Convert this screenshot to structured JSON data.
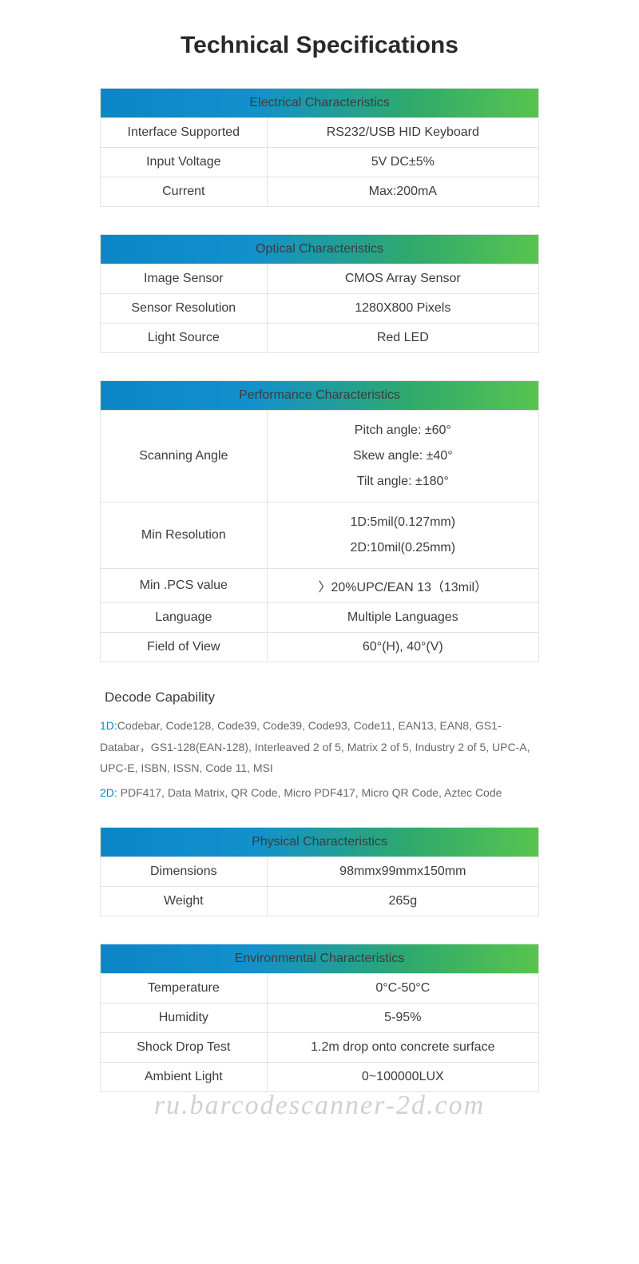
{
  "page": {
    "title": "Technical Specifications"
  },
  "header_gradient": [
    "#0b86c6",
    "#1291cd",
    "#2ea96e",
    "#58c44e"
  ],
  "border_color": "#e2e3e4",
  "text_color": "#3b3c3d",
  "muted_text_color": "#66696c",
  "accent_color": "#0b86c6",
  "tables": {
    "electrical": {
      "title": "Electrical Characteristics",
      "rows": [
        {
          "label": "Interface Supported",
          "value": "RS232/USB HID Keyboard"
        },
        {
          "label": "Input Voltage",
          "value": "5V DC±5%"
        },
        {
          "label": "Current",
          "value": "Max:200mA"
        }
      ]
    },
    "optical": {
      "title": "Optical Characteristics",
      "rows": [
        {
          "label": "Image Sensor",
          "value": "CMOS Array Sensor"
        },
        {
          "label": "Sensor Resolution",
          "value": "1280X800 Pixels"
        },
        {
          "label": "Light Source",
          "value": "Red LED"
        }
      ]
    },
    "performance": {
      "title": "Performance Characteristics",
      "rows": [
        {
          "label": "Scanning Angle",
          "value": "Pitch angle: ±60°\nSkew angle: ±40°\nTilt angle: ±180°",
          "multiline": true
        },
        {
          "label": "Min Resolution",
          "value": "1D:5mil(0.127mm)\n2D:10mil(0.25mm)",
          "multiline": true
        },
        {
          "label": "Min .PCS value",
          "value": "〉20%UPC/EAN 13（13mil）"
        },
        {
          "label": "Language",
          "value": "Multiple Languages"
        },
        {
          "label": "Field of View",
          "value": "60°(H), 40°(V)"
        }
      ]
    },
    "physical": {
      "title": "Physical Characteristics",
      "rows": [
        {
          "label": "Dimensions",
          "value": "98mmx99mmx150mm"
        },
        {
          "label": "Weight",
          "value": "265g"
        }
      ]
    },
    "environmental": {
      "title": "Environmental Characteristics",
      "rows": [
        {
          "label": "Temperature",
          "value": "0°C-50°C"
        },
        {
          "label": "Humidity",
          "value": "5-95%"
        },
        {
          "label": "Shock Drop Test",
          "value": "1.2m drop onto concrete surface"
        },
        {
          "label": "Ambient Light",
          "value": "0~100000LUX"
        }
      ]
    }
  },
  "decode": {
    "title": "Decode Capability",
    "lines": [
      {
        "prefix": "1D:",
        "text": "Codebar, Code128, Code39, Code39, Code93, Code11, EAN13, EAN8, GS1-Databar，GS1-128(EAN-128), Interleaved 2 of 5, Matrix 2 of 5, Industry 2 of 5, UPC-A, UPC-E, ISBN, ISSN, Code 11, MSI"
      },
      {
        "prefix": "2D:",
        "text": " PDF417, Data Matrix, QR Code, Micro PDF417, Micro QR Code, Aztec Code"
      }
    ]
  },
  "watermark": "ru.barcodescanner-2d.com"
}
